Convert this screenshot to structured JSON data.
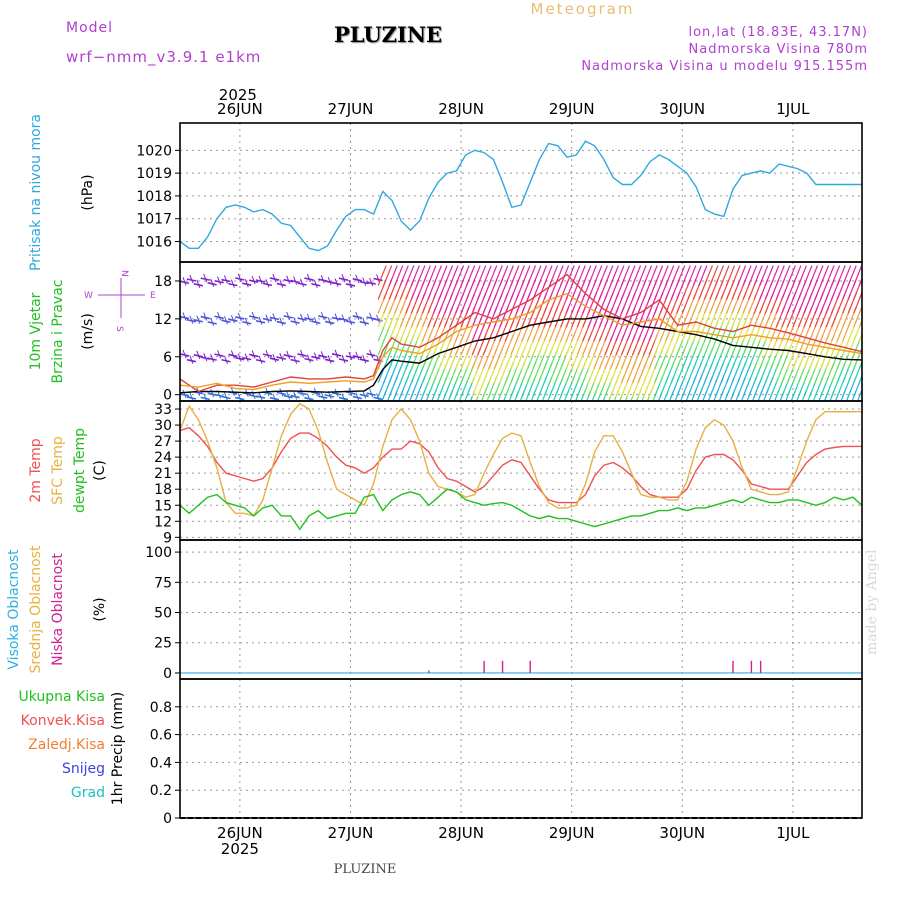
{
  "header": {
    "model_label": "Model",
    "model_code": "wrf−nmm_v3.9.1  e1km",
    "title": "PLUZINE",
    "meteogram_label": "Meteogram",
    "coords": "lon,lat (18.83E, 43.17N)",
    "elevation": "Nadmorska Visina 780m",
    "model_elevation": "Nadmorska Visina u modelu 915.155m"
  },
  "footer": {
    "station": "PLUZINE",
    "credit": "made by Angel"
  },
  "time_axis": {
    "year": "2025",
    "days": [
      "26JUN",
      "27JUN",
      "28JUN",
      "29JUN",
      "30JUN",
      "1JUL"
    ],
    "day_positions_hours": [
      0,
      24,
      48,
      72,
      96,
      120
    ],
    "start_hour": -13,
    "end_hour": 135
  },
  "chart_data": [
    {
      "id": "pressure",
      "type": "line",
      "ylabel": "(hPa)",
      "side_labels": [
        {
          "text": "Pritisak na nivou mora",
          "color": "#30a8e0"
        }
      ],
      "ylim": [
        1015.1,
        1021.2
      ],
      "yticks": [
        1016,
        1017,
        1018,
        1019,
        1020
      ],
      "grid": true,
      "series": [
        {
          "color": "#30a8e0",
          "x": [
            -13,
            -11,
            -9,
            -7,
            -5,
            -3,
            -1,
            1,
            3,
            5,
            7,
            9,
            11,
            13,
            15,
            17,
            19,
            21,
            23,
            25,
            27,
            29,
            31,
            33,
            35,
            37,
            39,
            41,
            43,
            45,
            47,
            49,
            51,
            53,
            55,
            57,
            59,
            61,
            63,
            65,
            67,
            69,
            71,
            73,
            75,
            77,
            79,
            81,
            83,
            85,
            87,
            89,
            91,
            93,
            95,
            97,
            99,
            101,
            103,
            105,
            107,
            109,
            111,
            113,
            115,
            117,
            119,
            121,
            123,
            125,
            127,
            129,
            131,
            133,
            135
          ],
          "y": [
            1016.0,
            1015.7,
            1015.7,
            1016.2,
            1017.0,
            1017.5,
            1017.6,
            1017.5,
            1017.3,
            1017.4,
            1017.2,
            1016.8,
            1016.7,
            1016.2,
            1015.7,
            1015.6,
            1015.8,
            1016.5,
            1017.1,
            1017.4,
            1017.4,
            1017.2,
            1018.2,
            1017.8,
            1016.9,
            1016.5,
            1016.9,
            1017.9,
            1018.6,
            1019.0,
            1019.1,
            1019.8,
            1020.0,
            1019.9,
            1019.6,
            1018.6,
            1017.5,
            1017.6,
            1018.6,
            1019.6,
            1020.3,
            1020.2,
            1019.7,
            1019.8,
            1020.4,
            1020.2,
            1019.6,
            1018.8,
            1018.5,
            1018.5,
            1018.9,
            1019.5,
            1019.8,
            1019.6,
            1019.3,
            1019.0,
            1018.4,
            1017.4,
            1017.2,
            1017.1,
            1018.3,
            1018.9,
            1019.0,
            1019.1,
            1019.0,
            1019.4,
            1019.3,
            1019.2,
            1019.0,
            1018.5,
            1018.5,
            1018.5,
            1018.5,
            1018.5,
            1018.5
          ]
        }
      ]
    },
    {
      "id": "wind",
      "type": "line",
      "ylabel": "(m/s)",
      "side_labels": [
        {
          "text": "10m Vjetar",
          "color": "#20c020"
        },
        {
          "text": "Brzina i Pravac",
          "color": "#20c020"
        }
      ],
      "compass": {
        "n": "N",
        "s": "S",
        "e": "E",
        "w": "W"
      },
      "ylim": [
        -1,
        21
      ],
      "yticks": [
        0,
        6,
        12,
        18
      ],
      "grid": true,
      "series": [
        {
          "name": "",
          "color": "#000000",
          "x": [
            -13,
            -9,
            -5,
            -1,
            3,
            7,
            11,
            15,
            19,
            23,
            27,
            29,
            31,
            33,
            35,
            39,
            43,
            47,
            51,
            55,
            59,
            63,
            67,
            71,
            75,
            79,
            83,
            87,
            91,
            95,
            99,
            103,
            107,
            111,
            115,
            119,
            123,
            127,
            131,
            135
          ],
          "y": [
            0.3,
            0.5,
            0.5,
            0.4,
            0.3,
            0.5,
            0.6,
            0.5,
            0.4,
            0.5,
            0.6,
            1.5,
            4,
            5.5,
            5.3,
            5.0,
            6.5,
            7.5,
            8.5,
            9,
            10,
            11,
            11.5,
            12,
            12,
            12.5,
            12,
            10.8,
            10.5,
            10,
            9.5,
            8.8,
            7.8,
            7.5,
            7.2,
            7,
            6.5,
            6,
            5.6,
            5.5
          ]
        },
        {
          "name": "",
          "color": "#e04040",
          "x": [
            -13,
            -9,
            -5,
            -1,
            3,
            7,
            11,
            15,
            19,
            23,
            27,
            29,
            31,
            33,
            35,
            39,
            43,
            47,
            51,
            55,
            59,
            63,
            67,
            71,
            75,
            79,
            83,
            87,
            91,
            95,
            99,
            103,
            107,
            111,
            115,
            119,
            123,
            127,
            131,
            135
          ],
          "y": [
            2.5,
            0.5,
            1.5,
            1.5,
            1.2,
            2,
            2.8,
            2.5,
            2.5,
            2.8,
            2.5,
            3,
            7,
            9,
            8,
            7.5,
            9,
            11,
            13,
            12,
            13.5,
            15,
            17,
            19,
            16,
            13.5,
            12,
            13,
            15,
            11,
            11.5,
            10.5,
            10,
            11,
            10.5,
            9.8,
            9,
            8.2,
            7.5,
            6.8
          ]
        },
        {
          "name": "",
          "color": "#f0a020",
          "x": [
            -13,
            -9,
            -5,
            -1,
            3,
            7,
            11,
            15,
            19,
            23,
            27,
            29,
            31,
            33,
            35,
            39,
            43,
            47,
            51,
            55,
            59,
            63,
            67,
            71,
            75,
            79,
            83,
            87,
            91,
            95,
            99,
            103,
            107,
            111,
            115,
            119,
            123,
            127,
            131,
            135
          ],
          "y": [
            1.5,
            1.2,
            1.8,
            1.0,
            0.8,
            1.5,
            2.0,
            1.8,
            2.0,
            2.2,
            2.0,
            2.5,
            6,
            7.5,
            7,
            6.5,
            8,
            10,
            11,
            11.5,
            12,
            13,
            15,
            16,
            14,
            12.5,
            11,
            11.5,
            12,
            10,
            10,
            9.5,
            9,
            9.5,
            9,
            8.8,
            8,
            7.5,
            7,
            6.5
          ]
        }
      ],
      "wind_vectors": {
        "before_hour": 30,
        "early_levels": [
          18,
          12,
          6,
          0
        ],
        "early_colors": [
          "#8020d0",
          "#5050e0",
          "#8020d0",
          "#3070e0"
        ],
        "late_color_stops": [
          "#20b0e0",
          "#20d0b0",
          "#60e060",
          "#e0e040",
          "#f0a040",
          "#f04040",
          "#e020a0"
        ]
      }
    },
    {
      "id": "temperature",
      "type": "line",
      "ylabel": "(C)",
      "side_labels": [
        {
          "text": "2m Temp",
          "color": "#f05050"
        },
        {
          "text": "SFC Temp",
          "color": "#e8b040"
        },
        {
          "text": "dewpt Temp",
          "color": "#20c020"
        }
      ],
      "ylim": [
        8.5,
        34.5
      ],
      "yticks": [
        9,
        12,
        15,
        18,
        21,
        24,
        27,
        30,
        33
      ],
      "grid": true,
      "series": [
        {
          "name": "2m Temp",
          "color": "#f05050",
          "x": [
            -13,
            -11,
            -9,
            -7,
            -5,
            -3,
            -1,
            1,
            3,
            5,
            7,
            9,
            11,
            13,
            15,
            17,
            19,
            21,
            23,
            25,
            27,
            29,
            31,
            33,
            35,
            37,
            39,
            41,
            43,
            45,
            47,
            49,
            51,
            53,
            55,
            57,
            59,
            61,
            63,
            65,
            67,
            69,
            71,
            73,
            75,
            77,
            79,
            81,
            83,
            85,
            87,
            89,
            91,
            93,
            95,
            97,
            99,
            101,
            103,
            105,
            107,
            109,
            111,
            113,
            115,
            117,
            119,
            121,
            123,
            125,
            127,
            129,
            131,
            133,
            135
          ],
          "y": [
            29,
            29.5,
            28,
            26,
            23,
            21,
            20.5,
            20,
            19.5,
            20,
            22,
            25,
            27.5,
            28.5,
            28.5,
            27.5,
            26,
            24,
            22.5,
            22,
            21,
            22,
            24,
            25.5,
            25.5,
            27,
            26.5,
            25,
            22,
            20,
            19.5,
            18.5,
            17.5,
            18.5,
            20.5,
            22.5,
            23.5,
            23,
            20.5,
            18,
            16,
            15.5,
            15.5,
            15.5,
            17,
            20.5,
            22.5,
            23,
            22,
            20.5,
            18.5,
            17,
            16.5,
            16.5,
            16.5,
            18,
            21.5,
            24,
            24.5,
            24.5,
            23.5,
            21.5,
            19,
            18.5,
            18,
            18,
            18,
            20.5,
            23,
            24.5,
            25.5,
            25.8,
            26,
            26,
            26
          ]
        },
        {
          "name": "SFC Temp",
          "color": "#e8b040",
          "x": [
            -13,
            -11,
            -9,
            -7,
            -5,
            -3,
            -1,
            1,
            3,
            5,
            7,
            9,
            11,
            13,
            15,
            17,
            19,
            21,
            23,
            25,
            27,
            29,
            31,
            33,
            35,
            37,
            39,
            41,
            43,
            45,
            47,
            49,
            51,
            53,
            55,
            57,
            59,
            61,
            63,
            65,
            67,
            69,
            71,
            73,
            75,
            77,
            79,
            81,
            83,
            85,
            87,
            89,
            91,
            93,
            95,
            97,
            99,
            101,
            103,
            105,
            107,
            109,
            111,
            113,
            115,
            117,
            119,
            121,
            123,
            125,
            127,
            129,
            131,
            133,
            135
          ],
          "y": [
            29,
            33.5,
            31,
            27,
            22,
            15.5,
            13.5,
            13.5,
            13,
            16,
            22,
            28,
            32,
            34,
            33,
            29,
            23,
            18,
            17,
            16,
            15,
            19,
            26,
            31,
            33,
            31,
            27,
            21,
            18.5,
            18,
            17.5,
            16.5,
            17,
            21,
            24.5,
            27.5,
            28.5,
            28,
            23,
            18.5,
            15.5,
            14.5,
            14.5,
            15,
            19,
            25,
            28,
            28,
            25,
            21,
            17,
            16.5,
            16.5,
            16,
            16,
            19.5,
            25.5,
            29.5,
            31,
            30,
            27,
            22,
            18,
            17.5,
            17,
            17,
            17.5,
            22,
            27,
            31,
            32.5,
            32.5,
            32.5,
            32.5,
            32.5
          ]
        },
        {
          "name": "dewpt Temp",
          "color": "#20c020",
          "x": [
            -13,
            -11,
            -9,
            -7,
            -5,
            -3,
            -1,
            1,
            3,
            5,
            7,
            9,
            11,
            13,
            15,
            17,
            19,
            21,
            23,
            25,
            27,
            29,
            31,
            33,
            35,
            37,
            39,
            41,
            43,
            45,
            47,
            49,
            51,
            53,
            55,
            57,
            59,
            61,
            63,
            65,
            67,
            69,
            71,
            73,
            75,
            77,
            79,
            81,
            83,
            85,
            87,
            89,
            91,
            93,
            95,
            97,
            99,
            101,
            103,
            105,
            107,
            109,
            111,
            113,
            115,
            117,
            119,
            121,
            123,
            125,
            127,
            129,
            131,
            133,
            135
          ],
          "y": [
            15,
            13.5,
            15,
            16.5,
            17,
            15.5,
            15,
            14.5,
            13,
            14.5,
            15,
            13,
            13,
            10.5,
            13,
            14,
            12.5,
            13,
            13.5,
            13.5,
            16.5,
            17,
            14,
            16,
            17,
            17.5,
            17,
            15,
            16.5,
            18,
            17.5,
            16,
            15.5,
            15,
            15.3,
            15.5,
            15,
            14,
            13,
            12.5,
            13,
            12.5,
            12.5,
            12,
            11.5,
            11,
            11.5,
            12,
            12.5,
            13,
            13,
            13.5,
            14,
            14,
            14.5,
            14,
            14.5,
            14.5,
            15,
            15.5,
            16,
            15.5,
            16.5,
            16,
            15.5,
            15.5,
            16,
            16,
            15.5,
            15,
            15.5,
            16.5,
            16,
            16.5,
            15
          ]
        }
      ]
    },
    {
      "id": "cloud",
      "type": "bar",
      "ylabel": "(%)",
      "side_labels": [
        {
          "text": "Visoka Oblacnost",
          "color": "#30b0e0"
        },
        {
          "text": "Srednja Oblacnost",
          "color": "#e8b040"
        },
        {
          "text": "Niska Oblacnost",
          "color": "#d02090"
        }
      ],
      "ylim": [
        -5,
        110
      ],
      "yticks": [
        0,
        25,
        50,
        75,
        100
      ],
      "grid": true,
      "series": [
        {
          "name": "Niska Oblacnost",
          "color": "#d02090",
          "x": [
            41,
            53,
            57,
            63,
            107,
            111,
            113
          ],
          "values": [
            2,
            10,
            10,
            10,
            10,
            10,
            10
          ]
        }
      ],
      "baseline_color": "#30b0e0"
    },
    {
      "id": "precip",
      "type": "bar",
      "ylabel": "1hr Precip (mm)",
      "side_labels": [
        {
          "text": "Ukupna Kisa",
          "color": "#20c020"
        },
        {
          "text": "Konvek.Kisa",
          "color": "#f05050"
        },
        {
          "text": "Zaledj.Kisa",
          "color": "#f08030"
        },
        {
          "text": "Snijeg",
          "color": "#4040e0"
        },
        {
          "text": "Grad",
          "color": "#20c0c0"
        }
      ],
      "ylim": [
        0,
        1.0
      ],
      "yticks": [
        0,
        0.2,
        0.4,
        0.6,
        0.8
      ],
      "ytick_labels": [
        "0",
        "0.2",
        "0.4",
        "0.6",
        "0.8"
      ],
      "grid": true,
      "series": []
    }
  ]
}
